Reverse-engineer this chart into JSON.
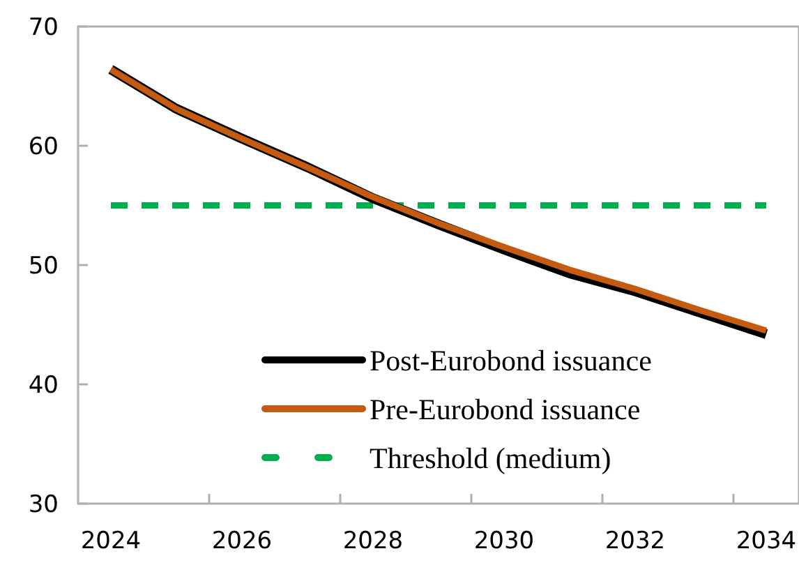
{
  "chart_data": {
    "type": "line",
    "categories": [
      "2024",
      null,
      "2026",
      null,
      "2028",
      null,
      "2030",
      null,
      "2032",
      null,
      "2034"
    ],
    "series": [
      {
        "name": "Post-Eurobond issuance",
        "color": "#000000",
        "values": [
          66.4,
          63.1,
          60.6,
          58.2,
          55.6,
          53.4,
          51.3,
          49.3,
          47.8,
          46.0,
          44.2
        ]
      },
      {
        "name": "Pre-Eurobond issuance",
        "color": "#c55a11",
        "values": [
          66.4,
          63.1,
          60.6,
          58.2,
          55.7,
          53.5,
          51.5,
          49.6,
          48.0,
          46.2,
          44.5
        ]
      },
      {
        "name": "Threshold (medium)",
        "color": "#00b050",
        "line_style": "dashed",
        "values": [
          55,
          55,
          55,
          55,
          55,
          55,
          55,
          55,
          55,
          55,
          55
        ]
      }
    ],
    "ylim": [
      30,
      70
    ],
    "yticks": [
      30,
      40,
      50,
      60,
      70
    ],
    "legend": "bottom",
    "grid": false
  }
}
